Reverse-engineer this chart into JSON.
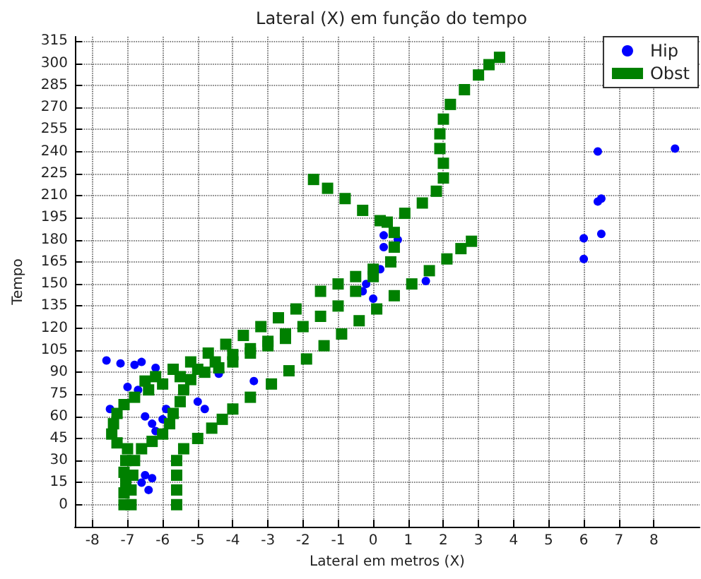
{
  "chart_data": {
    "type": "scatter",
    "title": "Lateral (X) em função do tempo",
    "xlabel": "Lateral em metros (X)",
    "ylabel": "Tempo",
    "xlim": [
      -8.5,
      9.3
    ],
    "ylim": [
      -15,
      318
    ],
    "xticks": [
      -8,
      -7,
      -6,
      -5,
      -4,
      -3,
      -2,
      -1,
      0,
      1,
      2,
      3,
      4,
      5,
      6,
      7,
      8
    ],
    "yticks": [
      0,
      15,
      30,
      45,
      60,
      75,
      90,
      105,
      120,
      135,
      150,
      165,
      180,
      195,
      210,
      225,
      240,
      255,
      270,
      285,
      300,
      315
    ],
    "grid": true,
    "legend": "top right",
    "series": [
      {
        "name": "Hip",
        "color": "#0000ff",
        "marker": "circle",
        "x": [
          -7.6,
          -7.2,
          -6.8,
          -6.6,
          -6.2,
          -4.4,
          -3.4,
          -6.5,
          -6.3,
          -6.2,
          -6.0,
          -5.9,
          -5.0,
          -4.8,
          -6.5,
          -6.6,
          -6.4,
          -6.3,
          -7.5,
          -7.0,
          -6.7,
          -0.2,
          -0.3,
          0.0,
          0.2,
          0.7,
          1.5,
          0.3,
          0.3,
          6.4,
          8.6,
          6.4,
          6.5,
          6.5,
          6.0,
          6.0
        ],
        "values": [
          98,
          96,
          95,
          97,
          93,
          89,
          84,
          60,
          55,
          50,
          58,
          65,
          70,
          65,
          20,
          15,
          10,
          18,
          65,
          80,
          78,
          150,
          145,
          140,
          160,
          180,
          152,
          175,
          183,
          240,
          242,
          206,
          208,
          184,
          181,
          167
        ]
      },
      {
        "name": "Obst",
        "color": "#008000",
        "marker": "square",
        "x": [
          -7.1,
          -7.1,
          -7.05,
          -7.1,
          -7.05,
          -7.0,
          -7.3,
          -7.45,
          -7.4,
          -7.3,
          -7.1,
          -6.8,
          -6.4,
          -6.0,
          -5.5,
          -5.0,
          -4.5,
          -4.0,
          -3.5,
          -3.0,
          -2.5,
          -2.0,
          -1.5,
          -1.0,
          -0.5,
          0.0,
          0.4,
          0.9,
          1.4,
          1.8,
          2.0,
          2.0,
          1.9,
          1.9,
          2.0,
          2.2,
          2.6,
          3.0,
          3.3,
          3.6,
          -1.7,
          -1.3,
          -0.8,
          -0.3,
          0.2,
          0.6,
          0.6,
          0.5,
          0.0,
          -0.5,
          -1.0,
          -1.5,
          -2.2,
          -2.7,
          -3.2,
          -3.7,
          -4.2,
          -4.7,
          -5.2,
          -5.7,
          -6.2,
          -6.5,
          -6.9,
          -6.9,
          -6.85,
          -6.8,
          -6.6,
          -6.3,
          -6.0,
          -5.8,
          -5.7,
          -5.5,
          -5.4,
          -5.2,
          -4.8,
          -4.4,
          -4.0,
          -3.5,
          -3.0,
          -2.5,
          -5.6,
          -5.6,
          -5.6,
          -5.6,
          -5.4,
          -5.0,
          -4.6,
          -4.3,
          -4.0,
          -3.5,
          -2.9,
          -2.4,
          -1.9,
          -1.4,
          -0.9,
          -0.4,
          0.1,
          0.6,
          1.1,
          1.6,
          2.1,
          2.5,
          2.8
        ],
        "values": [
          0,
          8,
          15,
          22,
          30,
          38,
          42,
          48,
          55,
          62,
          68,
          73,
          78,
          82,
          87,
          92,
          97,
          102,
          106,
          111,
          116,
          121,
          128,
          135,
          145,
          155,
          192,
          198,
          205,
          213,
          222,
          232,
          242,
          252,
          262,
          272,
          282,
          292,
          299,
          304,
          221,
          215,
          208,
          200,
          193,
          185,
          175,
          165,
          160,
          155,
          150,
          145,
          133,
          127,
          121,
          115,
          109,
          103,
          97,
          92,
          87,
          84,
          0,
          10,
          20,
          30,
          38,
          43,
          48,
          55,
          62,
          70,
          78,
          85,
          90,
          93,
          97,
          103,
          108,
          113,
          0,
          10,
          20,
          30,
          38,
          45,
          52,
          58,
          65,
          73,
          82,
          91,
          99,
          108,
          116,
          125,
          133,
          142,
          150,
          159,
          167,
          174,
          179
        ]
      }
    ]
  }
}
